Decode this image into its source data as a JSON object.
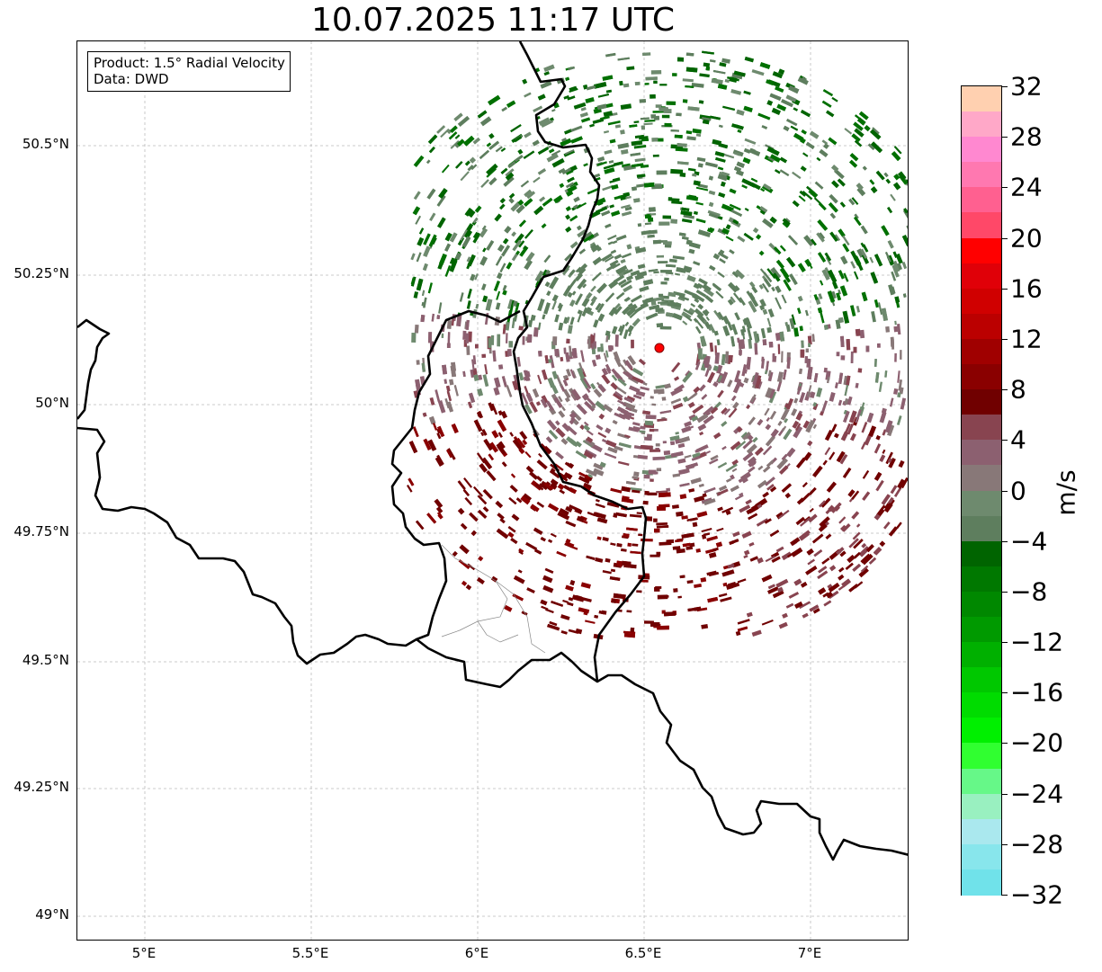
{
  "title": "10.07.2025 11:17 UTC",
  "info_box": {
    "product": "Product: 1.5° Radial Velocity",
    "data": "Data: DWD"
  },
  "axes": {
    "x_ticks": [
      "5°E",
      "5.5°E",
      "6°E",
      "6.5°E",
      "7°E"
    ],
    "y_ticks": [
      "50.5°N",
      "50.25°N",
      "50°N",
      "49.75°N",
      "49.5°N",
      "49.25°N",
      "49°N"
    ]
  },
  "radar_site_color": "#ff0000",
  "colorbar": {
    "label": "m/s",
    "ticks": [
      "32",
      "28",
      "24",
      "20",
      "16",
      "12",
      "8",
      "4",
      "0",
      "−4",
      "−8",
      "−12",
      "−16",
      "−20",
      "−24",
      "−28",
      "−32"
    ],
    "colors_top_to_bottom": [
      "#ffd0b0",
      "#ffa8c8",
      "#ff88d0",
      "#ff78b0",
      "#ff6090",
      "#ff4868",
      "#ff0000",
      "#e00008",
      "#d00000",
      "#bb0000",
      "#a00000",
      "#8a0000",
      "#700000",
      "#884450",
      "#8c6070",
      "#887878",
      "#6e8a6e",
      "#5e7e5e",
      "#006400",
      "#007800",
      "#008800",
      "#009a00",
      "#00b000",
      "#00c800",
      "#00dc00",
      "#00f000",
      "#30ff30",
      "#66f888",
      "#99f0c0",
      "#aae8ee",
      "#88e6ec",
      "#70e2ea"
    ]
  }
}
